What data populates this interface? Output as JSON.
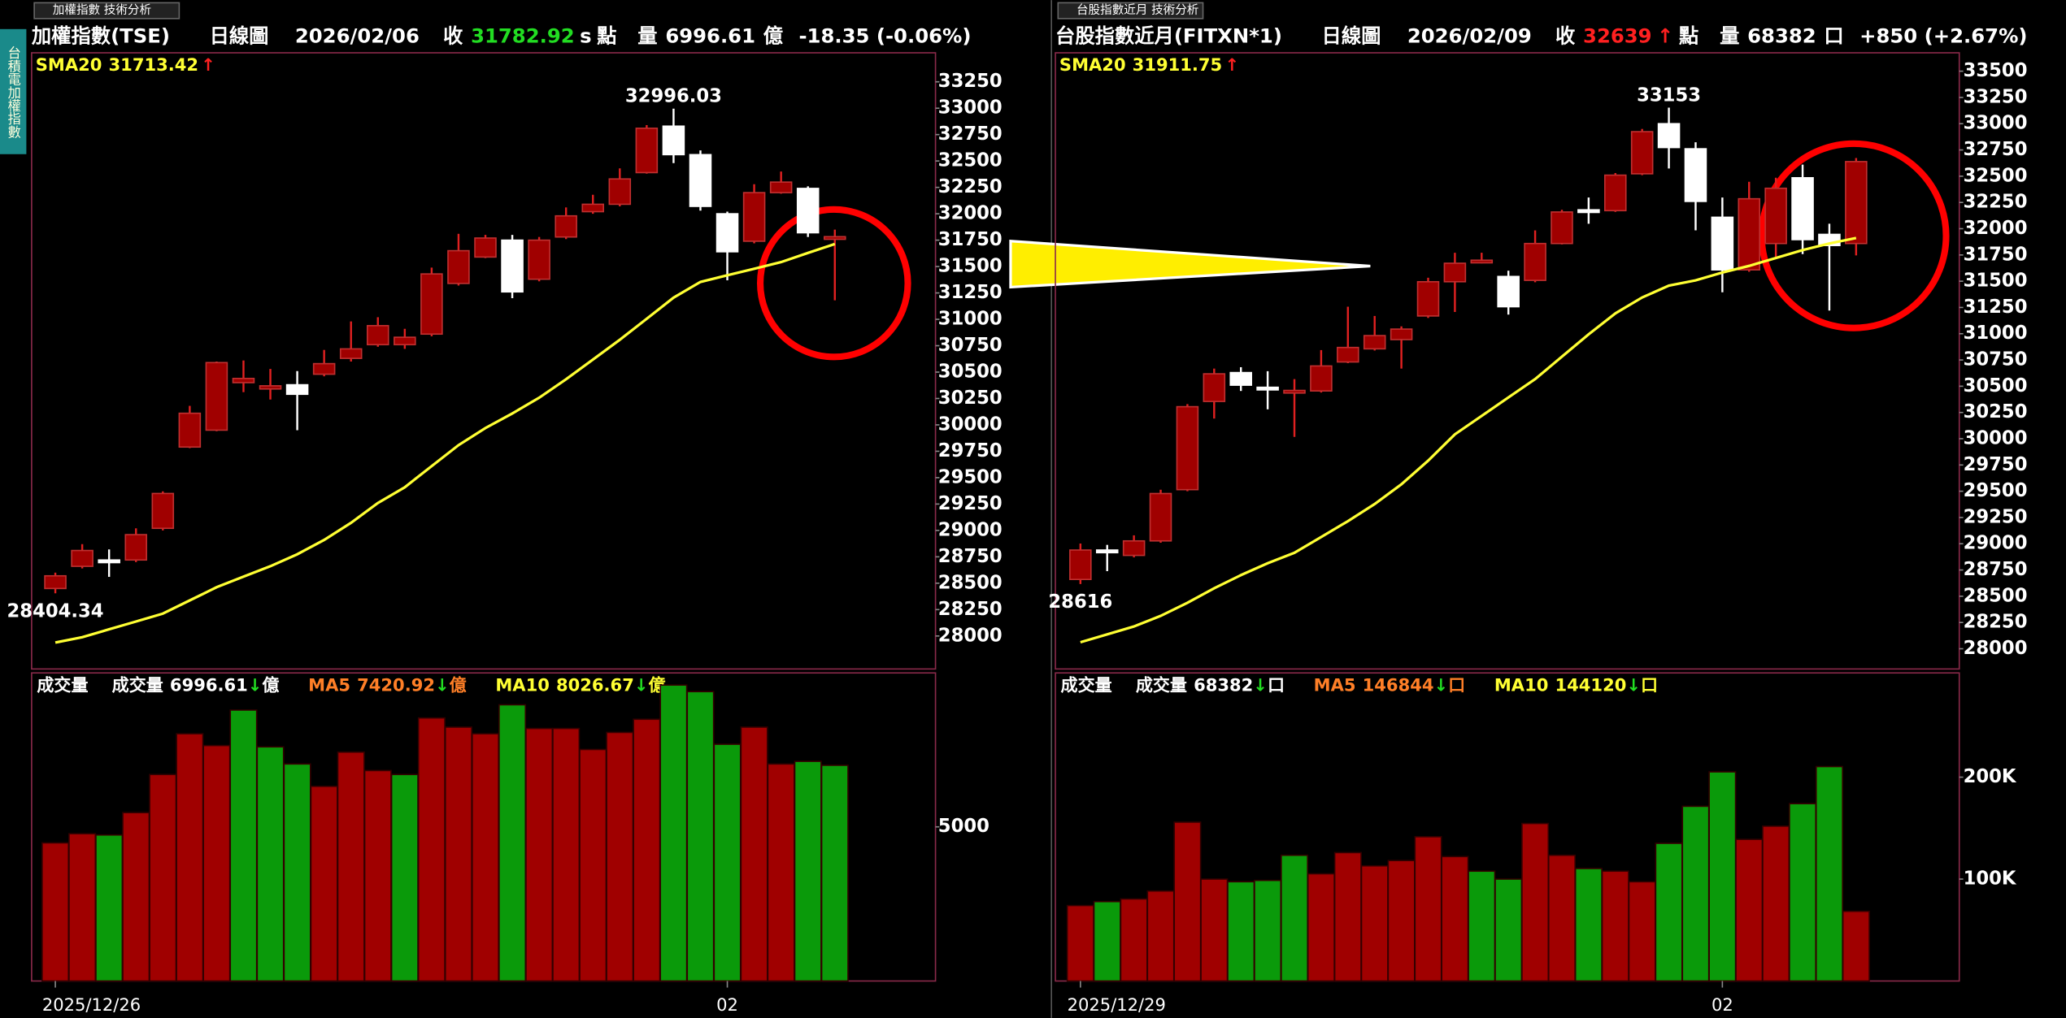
{
  "window_tab": "台積電加權指數",
  "chart_data": [
    {
      "type": "candlestick",
      "tab": "加權指數 技術分析",
      "title": "加權指數(TSE)",
      "period": "日線圖",
      "date": "2026/02/06",
      "close_label": "收",
      "close_color": "#22dd22",
      "close_mark": "s",
      "close_mark_color": "#ffffff",
      "point": "點",
      "volume_label": "量",
      "volume_unit": "億",
      "change": "-18.35 (-0.06%)",
      "up_color": "#a00000",
      "down_color": "#ffffff",
      "categories": [
        "2025/12/26",
        null,
        null,
        null,
        null,
        null,
        null,
        null,
        null,
        null,
        null,
        null,
        null,
        null,
        null,
        null,
        null,
        null,
        null,
        null,
        null,
        null,
        null,
        null,
        null,
        "02",
        null,
        null,
        null,
        null
      ],
      "open": [
        28450,
        28660,
        28720,
        28720,
        29020,
        29790,
        29950,
        30400,
        30340,
        30380,
        30480,
        30630,
        30760,
        30760,
        30860,
        31340,
        31590,
        31750,
        31380,
        31780,
        32020,
        32090,
        32390,
        32830,
        32560,
        32000,
        31740,
        32200,
        32240,
        31770
      ],
      "high": [
        28600,
        28870,
        28820,
        29020,
        29370,
        30180,
        30600,
        30610,
        30530,
        30510,
        30710,
        30980,
        31020,
        30910,
        31490,
        31810,
        31800,
        31800,
        31780,
        32060,
        32180,
        32430,
        32840,
        32996.03,
        32600,
        32020,
        32280,
        32400,
        32260,
        31850
      ],
      "low": [
        28404.34,
        28640,
        28560,
        28700,
        29000,
        29780,
        29940,
        30310,
        30240,
        29950,
        30460,
        30600,
        30740,
        30720,
        30840,
        31320,
        31580,
        31200,
        31360,
        31760,
        32000,
        32070,
        32380,
        32480,
        32030,
        31370,
        31720,
        32190,
        31780,
        31180
      ],
      "close": [
        28570,
        28810,
        28700,
        28960,
        29350,
        30110,
        30590,
        30440,
        30370,
        30290,
        30580,
        30720,
        30940,
        30830,
        31430,
        31650,
        31770,
        31260,
        31750,
        31980,
        32090,
        32330,
        32810,
        32560,
        32070,
        31640,
        32200,
        32300,
        31820,
        31782.92
      ],
      "sma": {
        "name": "SMA20",
        "arrow": "↑",
        "color": "#ffff33",
        "values": [
          27938,
          27988,
          28063,
          28137,
          28212,
          28337,
          28462,
          28562,
          28661,
          28774,
          28910,
          29072,
          29260,
          29409,
          29609,
          29808,
          29970,
          30108,
          30257,
          30432,
          30619,
          30806,
          31005,
          31205,
          31354,
          31417,
          31479,
          31542,
          31629,
          31713.42
        ]
      },
      "ylim": [
        27700,
        33500
      ],
      "yticks": [
        28000,
        28250,
        28500,
        28750,
        29000,
        29250,
        29500,
        29750,
        30000,
        30250,
        30500,
        30750,
        31000,
        31250,
        31500,
        31750,
        32000,
        32250,
        32500,
        32750,
        33000,
        33250
      ],
      "volume": {
        "title": "成交量",
        "label": "成交量",
        "arrow": "↓",
        "unit": "億",
        "ma5": {
          "name": "MA5",
          "value": 7420.92,
          "color": "#ff7f27"
        },
        "ma10": {
          "name": "MA10",
          "value": 8026.67,
          "color": "#ffff33"
        },
        "values": [
          4480,
          4778,
          4736,
          5461,
          6698,
          8020,
          7637,
          8788,
          7594,
          7039,
          6314,
          7423,
          6826,
          6698,
          8532,
          8234,
          8020,
          8959,
          8191,
          8191,
          7509,
          8063,
          8490,
          9599,
          9386,
          7679,
          8234,
          7039,
          7125,
          6996.61
        ],
        "colors": [
          "#a00000",
          "#a00000",
          "#0a9a0a",
          "#a00000",
          "#a00000",
          "#a00000",
          "#a00000",
          "#0a9a0a",
          "#0a9a0a",
          "#0a9a0a",
          "#a00000",
          "#a00000",
          "#a00000",
          "#0a9a0a",
          "#a00000",
          "#a00000",
          "#a00000",
          "#0a9a0a",
          "#a00000",
          "#a00000",
          "#a00000",
          "#a00000",
          "#a00000",
          "#0a9a0a",
          "#0a9a0a",
          "#0a9a0a",
          "#a00000",
          "#a00000",
          "#0a9a0a",
          "#0a9a0a"
        ],
        "ylim": [
          0,
          9950
        ],
        "yticks": [
          5000
        ]
      }
    },
    {
      "type": "candlestick",
      "tab": "台股指數近月 技術分析",
      "title": "台股指數近月(FITXN*1)",
      "period": "日線圖",
      "date": "2026/02/09",
      "close_label": "收",
      "close_color": "#ff2020",
      "close_mark": "↑",
      "close_mark_color": "#ff2020",
      "point": "點",
      "volume_label": "量",
      "volume_unit": "口",
      "change": "+850 (+2.67%)",
      "up_color": "#a00000",
      "down_color": "#ffffff",
      "categories": [
        "2025/12/29",
        null,
        null,
        null,
        null,
        null,
        null,
        null,
        null,
        null,
        null,
        null,
        null,
        null,
        null,
        null,
        null,
        null,
        null,
        null,
        null,
        null,
        null,
        null,
        "02",
        null,
        null,
        null,
        null,
        null
      ],
      "open": [
        28660,
        28940,
        28889,
        29027,
        29515,
        30355,
        30630,
        30490,
        30440,
        30455,
        30731,
        30856,
        30944,
        31169,
        31495,
        31690,
        31545,
        31508,
        31859,
        32180,
        32172,
        32523,
        33000,
        32761,
        32109,
        31608,
        31859,
        32485,
        31946,
        31859
      ],
      "high": [
        29002,
        28989,
        29080,
        29515,
        30330,
        30668,
        30681,
        30643,
        30568,
        30844,
        31257,
        31169,
        31070,
        31533,
        31771,
        31771,
        31600,
        31984,
        32180,
        32297,
        32530,
        32950,
        33153,
        32823,
        32297,
        32447,
        32485,
        32610,
        32047,
        32673
      ],
      "low": [
        28616,
        28739,
        28870,
        29010,
        29500,
        30192,
        30455,
        30280,
        30017,
        30440,
        30720,
        30840,
        30668,
        31150,
        31207,
        31670,
        31182,
        31490,
        31850,
        32047,
        32160,
        32510,
        32573,
        31984,
        31395,
        31590,
        31733,
        31758,
        31220,
        31746
      ],
      "close": [
        28940,
        28920,
        29027,
        29478,
        30305,
        30618,
        30510,
        30480,
        30460,
        30693,
        30869,
        30982,
        31044,
        31495,
        31671,
        31700,
        31257,
        31859,
        32159,
        32170,
        32510,
        32924,
        32773,
        32260,
        31608,
        32285,
        32385,
        31896,
        31840,
        32639
      ],
      "sma": {
        "name": "SMA20",
        "arrow": "↑",
        "color": "#ffff33",
        "values": [
          28062,
          28137,
          28212,
          28313,
          28438,
          28576,
          28701,
          28814,
          28914,
          29064,
          29215,
          29378,
          29566,
          29791,
          30042,
          30217,
          30393,
          30568,
          30781,
          30994,
          31194,
          31345,
          31458,
          31508,
          31583,
          31646,
          31721,
          31796,
          31859,
          31911.75
        ]
      },
      "ylim": [
        27820,
        33650
      ],
      "yticks": [
        28000,
        28250,
        28500,
        28750,
        29000,
        29250,
        29500,
        29750,
        30000,
        30250,
        30500,
        30750,
        31000,
        31250,
        31500,
        31750,
        32000,
        32250,
        32500,
        32750,
        33000,
        33250,
        33500
      ],
      "volume": {
        "title": "成交量",
        "label": "成交量",
        "arrow": "↓",
        "unit": "口",
        "ma5": {
          "name": "MA5",
          "value": 146844,
          "color": "#ff7f27"
        },
        "ma10": {
          "name": "MA10",
          "value": 144120,
          "color": "#ffff33"
        },
        "values": [
          74026,
          77922,
          80519,
          88312,
          155844,
          100000,
          97403,
          98701,
          123377,
          105195,
          125974,
          112987,
          118182,
          141558,
          122078,
          107792,
          100000,
          154545,
          123377,
          110390,
          107792,
          97403,
          135065,
          171429,
          205195,
          138961,
          151948,
          174026,
          210390,
          68382
        ],
        "colors": [
          "#a00000",
          "#0a9a0a",
          "#a00000",
          "#a00000",
          "#a00000",
          "#a00000",
          "#0a9a0a",
          "#0a9a0a",
          "#0a9a0a",
          "#a00000",
          "#a00000",
          "#a00000",
          "#a00000",
          "#a00000",
          "#a00000",
          "#0a9a0a",
          "#0a9a0a",
          "#a00000",
          "#a00000",
          "#0a9a0a",
          "#a00000",
          "#a00000",
          "#0a9a0a",
          "#0a9a0a",
          "#0a9a0a",
          "#a00000",
          "#a00000",
          "#0a9a0a",
          "#0a9a0a",
          "#a00000"
        ],
        "ylim": [
          0,
          301000
        ],
        "yticks": [
          {
            "value": 100000,
            "label": "100K"
          },
          {
            "value": 200000,
            "label": "200K"
          }
        ]
      }
    }
  ]
}
